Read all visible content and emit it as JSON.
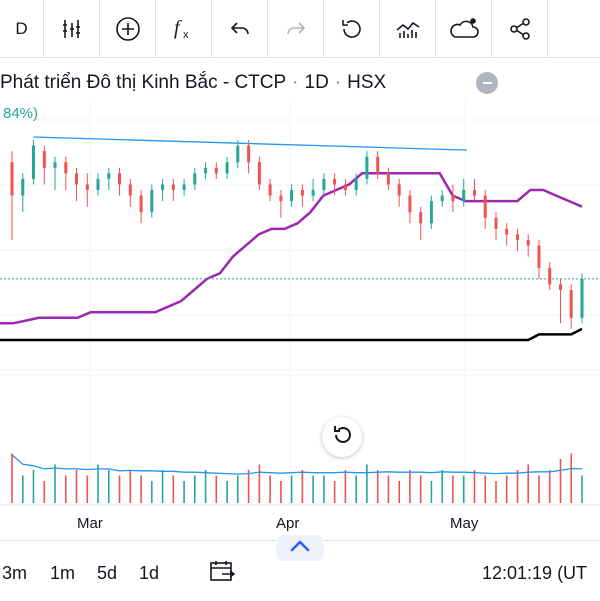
{
  "toolbar": {
    "interval_label": "D",
    "icons": [
      "indicators-icon",
      "add-icon",
      "function-icon",
      "undo-icon",
      "redo-icon",
      "reset-icon",
      "chart-style-icon",
      "weather-icon",
      "share-icon"
    ]
  },
  "header": {
    "symbol_name": "Phát triển Đô thị Kinh Bắc - CTCP",
    "interval": "1D",
    "exchange": "HSX",
    "separator": "·",
    "change_fragment": "84%)"
  },
  "axis": {
    "months": [
      "Mar",
      "Apr",
      "May"
    ]
  },
  "bottom_bar": {
    "timeframes": [
      "3m",
      "1m",
      "5d",
      "1d"
    ],
    "clock": "12:01:19 (UT"
  },
  "colors": {
    "up": "#26a69a",
    "down": "#ef5350",
    "trendline": "#2196f3",
    "purple_line": "#9c27b0",
    "black_line": "#000000",
    "volume_ma": "#2196f3",
    "price_line": "#26a69a",
    "accent": "#2962ff"
  },
  "chart_data": {
    "type": "candlestick",
    "price_scale_labels": "not visible",
    "candles": [
      {
        "o": 58,
        "c": 52,
        "h": 60,
        "l": 44
      },
      {
        "o": 52,
        "c": 55,
        "h": 56,
        "l": 49
      },
      {
        "o": 55,
        "c": 61,
        "h": 62,
        "l": 54
      },
      {
        "o": 60,
        "c": 57,
        "h": 61,
        "l": 54
      },
      {
        "o": 57,
        "c": 58,
        "h": 59,
        "l": 53
      },
      {
        "o": 58,
        "c": 56,
        "h": 59,
        "l": 53
      },
      {
        "o": 56,
        "c": 54,
        "h": 57,
        "l": 51
      },
      {
        "o": 54,
        "c": 53,
        "h": 56,
        "l": 50
      },
      {
        "o": 53,
        "c": 55,
        "h": 56,
        "l": 52
      },
      {
        "o": 55,
        "c": 56,
        "h": 57,
        "l": 53
      },
      {
        "o": 56,
        "c": 54,
        "h": 57,
        "l": 52
      },
      {
        "o": 54,
        "c": 52,
        "h": 55,
        "l": 50
      },
      {
        "o": 52,
        "c": 49,
        "h": 53,
        "l": 47
      },
      {
        "o": 49,
        "c": 53,
        "h": 54,
        "l": 48
      },
      {
        "o": 53,
        "c": 54,
        "h": 55,
        "l": 51
      },
      {
        "o": 54,
        "c": 53,
        "h": 55,
        "l": 51
      },
      {
        "o": 53,
        "c": 54,
        "h": 55,
        "l": 52
      },
      {
        "o": 54,
        "c": 56,
        "h": 57,
        "l": 53
      },
      {
        "o": 56,
        "c": 57,
        "h": 58,
        "l": 55
      },
      {
        "o": 57,
        "c": 56,
        "h": 58,
        "l": 55
      },
      {
        "o": 56,
        "c": 58,
        "h": 59,
        "l": 55
      },
      {
        "o": 58,
        "c": 61,
        "h": 62,
        "l": 57
      },
      {
        "o": 61,
        "c": 58,
        "h": 62,
        "l": 56
      },
      {
        "o": 58,
        "c": 54,
        "h": 59,
        "l": 53
      },
      {
        "o": 54,
        "c": 52,
        "h": 55,
        "l": 51
      },
      {
        "o": 52,
        "c": 51,
        "h": 53,
        "l": 48
      },
      {
        "o": 51,
        "c": 53,
        "h": 54,
        "l": 50
      },
      {
        "o": 53,
        "c": 52,
        "h": 54,
        "l": 50
      },
      {
        "o": 52,
        "c": 53,
        "h": 55,
        "l": 51
      },
      {
        "o": 53,
        "c": 55,
        "h": 56,
        "l": 52
      },
      {
        "o": 55,
        "c": 54,
        "h": 56,
        "l": 52
      },
      {
        "o": 54,
        "c": 53,
        "h": 55,
        "l": 52
      },
      {
        "o": 53,
        "c": 55,
        "h": 56,
        "l": 52
      },
      {
        "o": 55,
        "c": 59,
        "h": 60,
        "l": 54
      },
      {
        "o": 59,
        "c": 56,
        "h": 60,
        "l": 55
      },
      {
        "o": 56,
        "c": 54,
        "h": 57,
        "l": 53
      },
      {
        "o": 54,
        "c": 52,
        "h": 55,
        "l": 50
      },
      {
        "o": 52,
        "c": 49,
        "h": 53,
        "l": 47
      },
      {
        "o": 49,
        "c": 47,
        "h": 50,
        "l": 44
      },
      {
        "o": 47,
        "c": 51,
        "h": 52,
        "l": 46
      },
      {
        "o": 51,
        "c": 52,
        "h": 53,
        "l": 50
      },
      {
        "o": 52,
        "c": 51,
        "h": 54,
        "l": 49
      },
      {
        "o": 51,
        "c": 53,
        "h": 55,
        "l": 50
      },
      {
        "o": 53,
        "c": 52,
        "h": 55,
        "l": 51
      },
      {
        "o": 52,
        "c": 48,
        "h": 53,
        "l": 46
      },
      {
        "o": 48,
        "c": 46,
        "h": 49,
        "l": 44
      },
      {
        "o": 46,
        "c": 45,
        "h": 47,
        "l": 43
      },
      {
        "o": 45,
        "c": 44,
        "h": 46,
        "l": 42
      },
      {
        "o": 44,
        "c": 43,
        "h": 45,
        "l": 41
      },
      {
        "o": 43,
        "c": 39,
        "h": 44,
        "l": 37
      },
      {
        "o": 39,
        "c": 36,
        "h": 40,
        "l": 35
      },
      {
        "o": 36,
        "c": 35,
        "h": 37,
        "l": 29
      },
      {
        "o": 35,
        "c": 30,
        "h": 36,
        "l": 28
      },
      {
        "o": 30,
        "c": 37,
        "h": 38,
        "l": 29
      }
    ],
    "trendline": "descending line connecting early-March high to mid-April high",
    "purple_indicator": [
      29,
      29,
      29.5,
      30,
      30,
      30,
      30,
      31,
      31,
      31,
      31,
      31,
      31,
      32,
      33,
      35,
      37,
      38,
      41,
      43,
      45,
      46,
      46,
      47,
      49,
      52,
      53,
      54,
      56,
      56,
      56,
      56,
      56,
      56,
      56,
      52,
      51,
      51,
      51,
      51,
      51,
      53,
      53,
      52,
      51,
      50
    ],
    "black_indicator": [
      26,
      26,
      26,
      26,
      26,
      26,
      26,
      26,
      26,
      26,
      26,
      26,
      26,
      26,
      26,
      26,
      26,
      26,
      26,
      26,
      26,
      26,
      26,
      26,
      26,
      26,
      26,
      26,
      26,
      26,
      26,
      26,
      26,
      26,
      26,
      26,
      26,
      26,
      26,
      26,
      26,
      26,
      27,
      27,
      27,
      28
    ],
    "volume": [
      9,
      5,
      6,
      4,
      7,
      5,
      6,
      5,
      7,
      6,
      5,
      6,
      5,
      4,
      6,
      5,
      4,
      5,
      6,
      5,
      4,
      5,
      6,
      7,
      5,
      4,
      5,
      6,
      5,
      5,
      4,
      6,
      5,
      7,
      6,
      5,
      4,
      6,
      5,
      4,
      6,
      5,
      5,
      6,
      5,
      4,
      5,
      6,
      7,
      5,
      6,
      8,
      9,
      5
    ]
  }
}
